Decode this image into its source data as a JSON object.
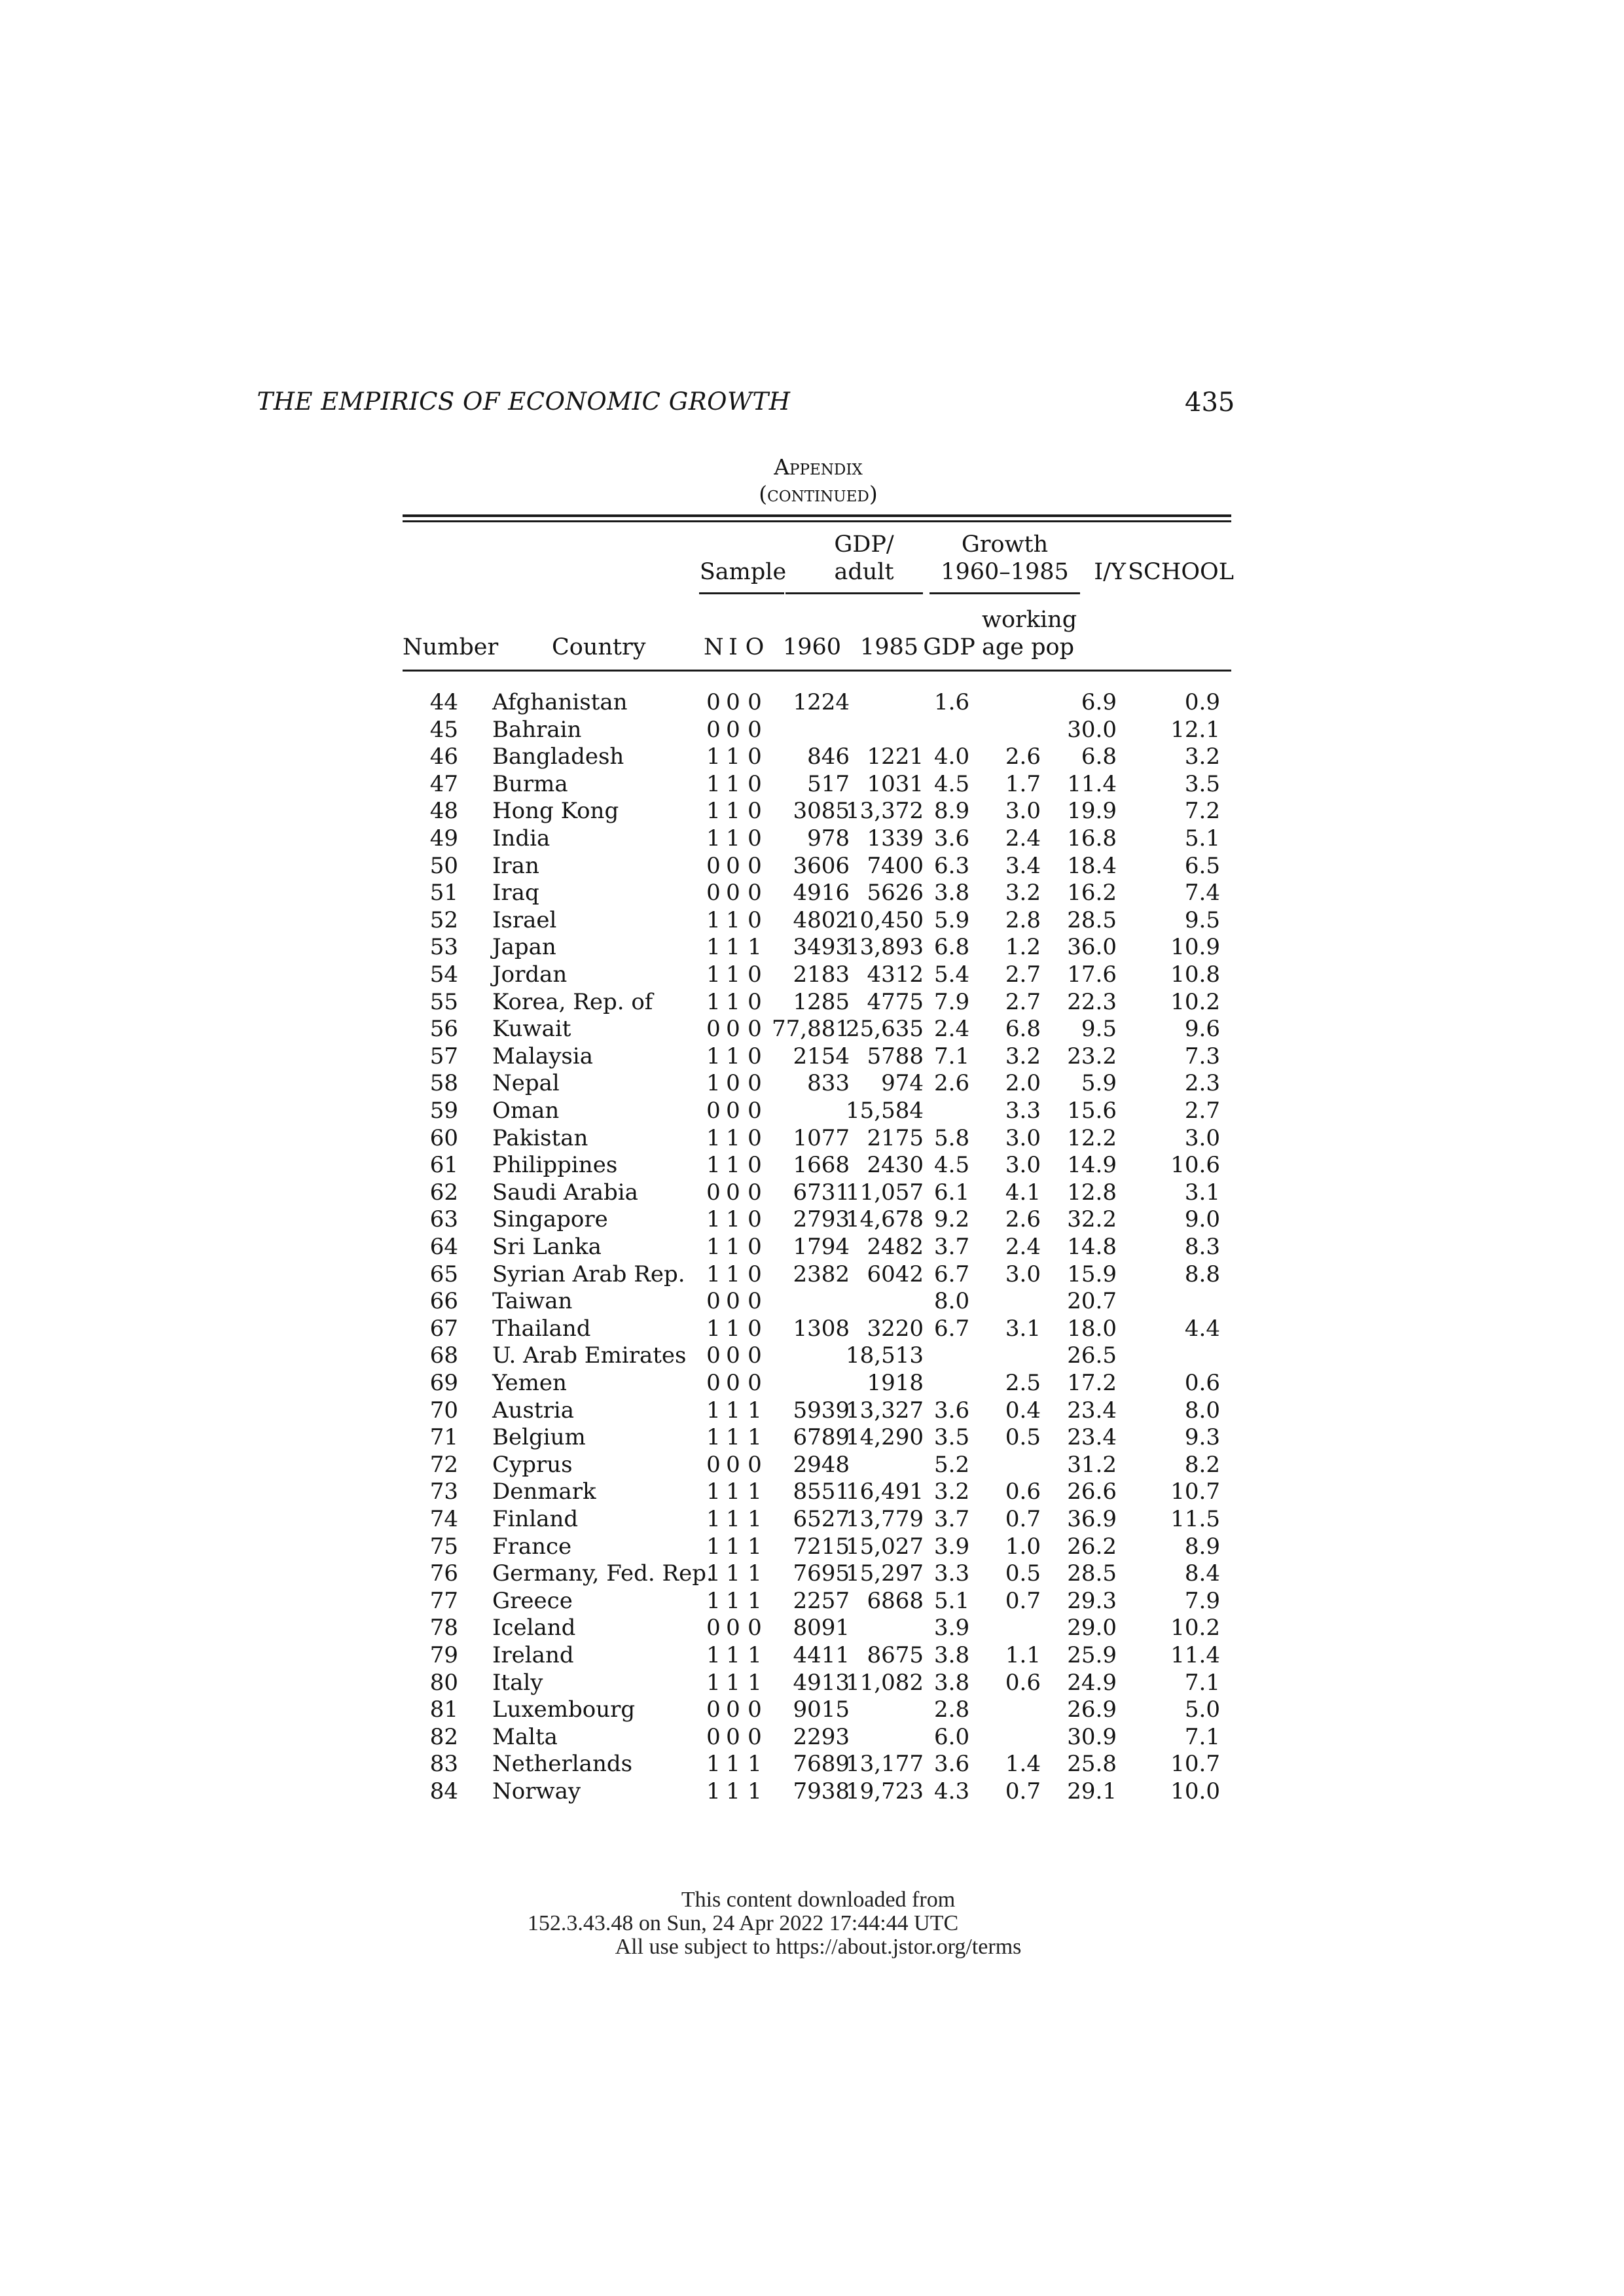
{
  "header": {
    "running_title": "THE EMPIRICS OF ECONOMIC GROWTH",
    "page_number": "435"
  },
  "appendix": {
    "title": "Appendix",
    "subtitle": "(continued)"
  },
  "columns": {
    "sample": "Sample",
    "gdp_adult_line1": "GDP/",
    "gdp_adult_line2": "adult",
    "growth_line1": "Growth",
    "growth_line2": "1960–1985",
    "iy": "I/Y",
    "school": "SCHOOL",
    "number": "Number",
    "country": "Country",
    "n": "N",
    "i": "I",
    "o": "O",
    "y1960": "1960",
    "y1985": "1985",
    "gdp": "GDP",
    "working_line1": "working",
    "working_line2": "age pop"
  },
  "rows": [
    {
      "num": "44",
      "country": "Afghanistan",
      "n": "0",
      "i": "0",
      "o": "0",
      "g1960": "1224",
      "g1985": "",
      "gdp": "1.6",
      "pop": "",
      "iy": "6.9",
      "school": "0.9"
    },
    {
      "num": "45",
      "country": "Bahrain",
      "n": "0",
      "i": "0",
      "o": "0",
      "g1960": "",
      "g1985": "",
      "gdp": "",
      "pop": "",
      "iy": "30.0",
      "school": "12.1"
    },
    {
      "num": "46",
      "country": "Bangladesh",
      "n": "1",
      "i": "1",
      "o": "0",
      "g1960": "846",
      "g1985": "1221",
      "gdp": "4.0",
      "pop": "2.6",
      "iy": "6.8",
      "school": "3.2"
    },
    {
      "num": "47",
      "country": "Burma",
      "n": "1",
      "i": "1",
      "o": "0",
      "g1960": "517",
      "g1985": "1031",
      "gdp": "4.5",
      "pop": "1.7",
      "iy": "11.4",
      "school": "3.5"
    },
    {
      "num": "48",
      "country": "Hong Kong",
      "n": "1",
      "i": "1",
      "o": "0",
      "g1960": "3085",
      "g1985": "13,372",
      "gdp": "8.9",
      "pop": "3.0",
      "iy": "19.9",
      "school": "7.2"
    },
    {
      "num": "49",
      "country": "India",
      "n": "1",
      "i": "1",
      "o": "0",
      "g1960": "978",
      "g1985": "1339",
      "gdp": "3.6",
      "pop": "2.4",
      "iy": "16.8",
      "school": "5.1"
    },
    {
      "num": "50",
      "country": "Iran",
      "n": "0",
      "i": "0",
      "o": "0",
      "g1960": "3606",
      "g1985": "7400",
      "gdp": "6.3",
      "pop": "3.4",
      "iy": "18.4",
      "school": "6.5"
    },
    {
      "num": "51",
      "country": "Iraq",
      "n": "0",
      "i": "0",
      "o": "0",
      "g1960": "4916",
      "g1985": "5626",
      "gdp": "3.8",
      "pop": "3.2",
      "iy": "16.2",
      "school": "7.4"
    },
    {
      "num": "52",
      "country": "Israel",
      "n": "1",
      "i": "1",
      "o": "0",
      "g1960": "4802",
      "g1985": "10,450",
      "gdp": "5.9",
      "pop": "2.8",
      "iy": "28.5",
      "school": "9.5"
    },
    {
      "num": "53",
      "country": "Japan",
      "n": "1",
      "i": "1",
      "o": "1",
      "g1960": "3493",
      "g1985": "13,893",
      "gdp": "6.8",
      "pop": "1.2",
      "iy": "36.0",
      "school": "10.9"
    },
    {
      "num": "54",
      "country": "Jordan",
      "n": "1",
      "i": "1",
      "o": "0",
      "g1960": "2183",
      "g1985": "4312",
      "gdp": "5.4",
      "pop": "2.7",
      "iy": "17.6",
      "school": "10.8"
    },
    {
      "num": "55",
      "country": "Korea, Rep. of",
      "n": "1",
      "i": "1",
      "o": "0",
      "g1960": "1285",
      "g1985": "4775",
      "gdp": "7.9",
      "pop": "2.7",
      "iy": "22.3",
      "school": "10.2"
    },
    {
      "num": "56",
      "country": "Kuwait",
      "n": "0",
      "i": "0",
      "o": "0",
      "g1960": "77,881",
      "g1985": "25,635",
      "gdp": "2.4",
      "pop": "6.8",
      "iy": "9.5",
      "school": "9.6"
    },
    {
      "num": "57",
      "country": "Malaysia",
      "n": "1",
      "i": "1",
      "o": "0",
      "g1960": "2154",
      "g1985": "5788",
      "gdp": "7.1",
      "pop": "3.2",
      "iy": "23.2",
      "school": "7.3"
    },
    {
      "num": "58",
      "country": "Nepal",
      "n": "1",
      "i": "0",
      "o": "0",
      "g1960": "833",
      "g1985": "974",
      "gdp": "2.6",
      "pop": "2.0",
      "iy": "5.9",
      "school": "2.3"
    },
    {
      "num": "59",
      "country": "Oman",
      "n": "0",
      "i": "0",
      "o": "0",
      "g1960": "",
      "g1985": "15,584",
      "gdp": "",
      "pop": "3.3",
      "iy": "15.6",
      "school": "2.7"
    },
    {
      "num": "60",
      "country": "Pakistan",
      "n": "1",
      "i": "1",
      "o": "0",
      "g1960": "1077",
      "g1985": "2175",
      "gdp": "5.8",
      "pop": "3.0",
      "iy": "12.2",
      "school": "3.0"
    },
    {
      "num": "61",
      "country": "Philippines",
      "n": "1",
      "i": "1",
      "o": "0",
      "g1960": "1668",
      "g1985": "2430",
      "gdp": "4.5",
      "pop": "3.0",
      "iy": "14.9",
      "school": "10.6"
    },
    {
      "num": "62",
      "country": "Saudi Arabia",
      "n": "0",
      "i": "0",
      "o": "0",
      "g1960": "6731",
      "g1985": "11,057",
      "gdp": "6.1",
      "pop": "4.1",
      "iy": "12.8",
      "school": "3.1"
    },
    {
      "num": "63",
      "country": "Singapore",
      "n": "1",
      "i": "1",
      "o": "0",
      "g1960": "2793",
      "g1985": "14,678",
      "gdp": "9.2",
      "pop": "2.6",
      "iy": "32.2",
      "school": "9.0"
    },
    {
      "num": "64",
      "country": "Sri Lanka",
      "n": "1",
      "i": "1",
      "o": "0",
      "g1960": "1794",
      "g1985": "2482",
      "gdp": "3.7",
      "pop": "2.4",
      "iy": "14.8",
      "school": "8.3"
    },
    {
      "num": "65",
      "country": "Syrian Arab Rep.",
      "n": "1",
      "i": "1",
      "o": "0",
      "g1960": "2382",
      "g1985": "6042",
      "gdp": "6.7",
      "pop": "3.0",
      "iy": "15.9",
      "school": "8.8"
    },
    {
      "num": "66",
      "country": "Taiwan",
      "n": "0",
      "i": "0",
      "o": "0",
      "g1960": "",
      "g1985": "",
      "gdp": "8.0",
      "pop": "",
      "iy": "20.7",
      "school": ""
    },
    {
      "num": "67",
      "country": "Thailand",
      "n": "1",
      "i": "1",
      "o": "0",
      "g1960": "1308",
      "g1985": "3220",
      "gdp": "6.7",
      "pop": "3.1",
      "iy": "18.0",
      "school": "4.4"
    },
    {
      "num": "68",
      "country": "U. Arab Emirates",
      "n": "0",
      "i": "0",
      "o": "0",
      "g1960": "",
      "g1985": "18,513",
      "gdp": "",
      "pop": "",
      "iy": "26.5",
      "school": ""
    },
    {
      "num": "69",
      "country": "Yemen",
      "n": "0",
      "i": "0",
      "o": "0",
      "g1960": "",
      "g1985": "1918",
      "gdp": "",
      "pop": "2.5",
      "iy": "17.2",
      "school": "0.6"
    },
    {
      "num": "70",
      "country": "Austria",
      "n": "1",
      "i": "1",
      "o": "1",
      "g1960": "5939",
      "g1985": "13,327",
      "gdp": "3.6",
      "pop": "0.4",
      "iy": "23.4",
      "school": "8.0"
    },
    {
      "num": "71",
      "country": "Belgium",
      "n": "1",
      "i": "1",
      "o": "1",
      "g1960": "6789",
      "g1985": "14,290",
      "gdp": "3.5",
      "pop": "0.5",
      "iy": "23.4",
      "school": "9.3"
    },
    {
      "num": "72",
      "country": "Cyprus",
      "n": "0",
      "i": "0",
      "o": "0",
      "g1960": "2948",
      "g1985": "",
      "gdp": "5.2",
      "pop": "",
      "iy": "31.2",
      "school": "8.2"
    },
    {
      "num": "73",
      "country": "Denmark",
      "n": "1",
      "i": "1",
      "o": "1",
      "g1960": "8551",
      "g1985": "16,491",
      "gdp": "3.2",
      "pop": "0.6",
      "iy": "26.6",
      "school": "10.7"
    },
    {
      "num": "74",
      "country": "Finland",
      "n": "1",
      "i": "1",
      "o": "1",
      "g1960": "6527",
      "g1985": "13,779",
      "gdp": "3.7",
      "pop": "0.7",
      "iy": "36.9",
      "school": "11.5"
    },
    {
      "num": "75",
      "country": "France",
      "n": "1",
      "i": "1",
      "o": "1",
      "g1960": "7215",
      "g1985": "15,027",
      "gdp": "3.9",
      "pop": "1.0",
      "iy": "26.2",
      "school": "8.9"
    },
    {
      "num": "76",
      "country": "Germany, Fed. Rep.",
      "n": "1",
      "i": "1",
      "o": "1",
      "g1960": "7695",
      "g1985": "15,297",
      "gdp": "3.3",
      "pop": "0.5",
      "iy": "28.5",
      "school": "8.4"
    },
    {
      "num": "77",
      "country": "Greece",
      "n": "1",
      "i": "1",
      "o": "1",
      "g1960": "2257",
      "g1985": "6868",
      "gdp": "5.1",
      "pop": "0.7",
      "iy": "29.3",
      "school": "7.9"
    },
    {
      "num": "78",
      "country": "Iceland",
      "n": "0",
      "i": "0",
      "o": "0",
      "g1960": "8091",
      "g1985": "",
      "gdp": "3.9",
      "pop": "",
      "iy": "29.0",
      "school": "10.2"
    },
    {
      "num": "79",
      "country": "Ireland",
      "n": "1",
      "i": "1",
      "o": "1",
      "g1960": "4411",
      "g1985": "8675",
      "gdp": "3.8",
      "pop": "1.1",
      "iy": "25.9",
      "school": "11.4"
    },
    {
      "num": "80",
      "country": "Italy",
      "n": "1",
      "i": "1",
      "o": "1",
      "g1960": "4913",
      "g1985": "11,082",
      "gdp": "3.8",
      "pop": "0.6",
      "iy": "24.9",
      "school": "7.1"
    },
    {
      "num": "81",
      "country": "Luxembourg",
      "n": "0",
      "i": "0",
      "o": "0",
      "g1960": "9015",
      "g1985": "",
      "gdp": "2.8",
      "pop": "",
      "iy": "26.9",
      "school": "5.0"
    },
    {
      "num": "82",
      "country": "Malta",
      "n": "0",
      "i": "0",
      "o": "0",
      "g1960": "2293",
      "g1985": "",
      "gdp": "6.0",
      "pop": "",
      "iy": "30.9",
      "school": "7.1"
    },
    {
      "num": "83",
      "country": "Netherlands",
      "n": "1",
      "i": "1",
      "o": "1",
      "g1960": "7689",
      "g1985": "13,177",
      "gdp": "3.6",
      "pop": "1.4",
      "iy": "25.8",
      "school": "10.7"
    },
    {
      "num": "84",
      "country": "Norway",
      "n": "1",
      "i": "1",
      "o": "1",
      "g1960": "7938",
      "g1985": "19,723",
      "gdp": "4.3",
      "pop": "0.7",
      "iy": "29.1",
      "school": "10.0"
    }
  ],
  "footer": {
    "line1": "This content downloaded from",
    "line2": "152.3.43.48 on Sun, 24 Apr 2022 17:44:44 UTC",
    "line3": "All use subject to https://about.jstor.org/terms"
  }
}
